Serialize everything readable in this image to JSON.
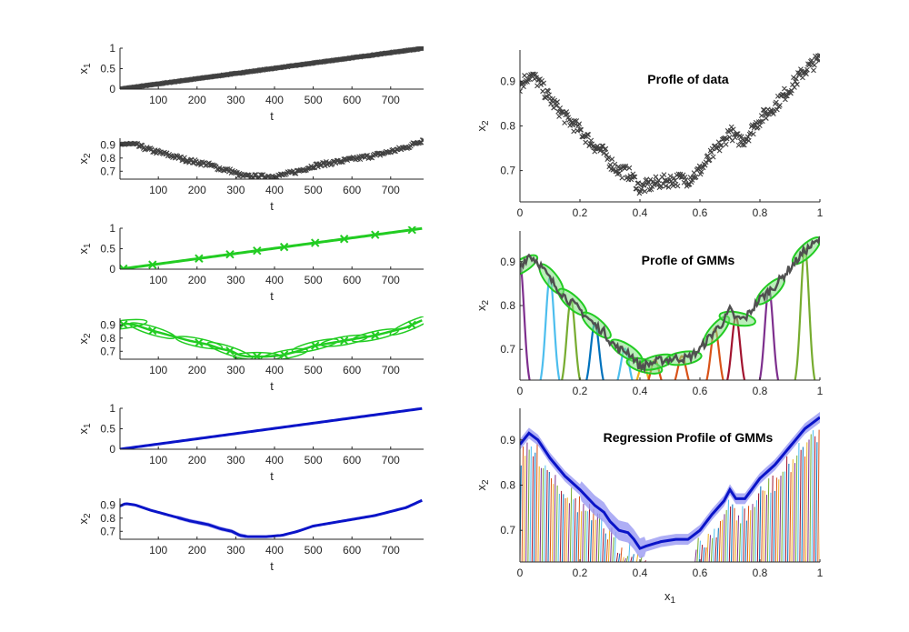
{
  "figure": {
    "background": "#ffffff"
  },
  "chart_data": [
    {
      "id": "p1",
      "type": "scatter",
      "title": "",
      "xlabel": "t",
      "ylabel": "x1",
      "xlim": [
        1,
        785
      ],
      "ylim": [
        0,
        1
      ],
      "xticks": [
        100,
        200,
        300,
        400,
        500,
        600,
        700
      ],
      "yticks": [
        0,
        0.5,
        1
      ],
      "series": [
        {
          "kind": "data_scatter",
          "color": "#404040",
          "curve": "x1",
          "marker": "x"
        }
      ]
    },
    {
      "id": "p2",
      "type": "scatter",
      "title": "",
      "xlabel": "t",
      "ylabel": "x2",
      "xlim": [
        1,
        785
      ],
      "ylim": [
        0.64,
        0.95
      ],
      "xticks": [
        100,
        200,
        300,
        400,
        500,
        600,
        700
      ],
      "yticks": [
        0.7,
        0.8,
        0.9
      ],
      "series": [
        {
          "kind": "data_scatter",
          "color": "#404040",
          "curve": "x2",
          "marker": "x"
        }
      ]
    },
    {
      "id": "p3",
      "type": "line",
      "title": "",
      "xlabel": "t",
      "ylabel": "x1",
      "xlim": [
        1,
        785
      ],
      "ylim": [
        0,
        1
      ],
      "xticks": [
        100,
        200,
        300,
        400,
        500,
        600,
        700
      ],
      "yticks": [
        0,
        0.5,
        1
      ],
      "series": [
        {
          "kind": "gmr_line",
          "color": "#22cc22",
          "curve": "x1"
        }
      ],
      "centers_t": [
        10,
        85,
        205,
        285,
        355,
        425,
        505,
        580,
        660,
        755
      ]
    },
    {
      "id": "p4",
      "type": "line",
      "title": "",
      "xlabel": "t",
      "ylabel": "x2",
      "xlim": [
        1,
        785
      ],
      "ylim": [
        0.64,
        0.95
      ],
      "xticks": [
        100,
        200,
        300,
        400,
        500,
        600,
        700
      ],
      "yticks": [
        0.7,
        0.8,
        0.9
      ],
      "series": [
        {
          "kind": "gmm_ellipses",
          "color": "#22cc22",
          "curve": "x2"
        }
      ],
      "centers_t": [
        10,
        85,
        205,
        285,
        355,
        425,
        505,
        580,
        660,
        755
      ]
    },
    {
      "id": "p5",
      "type": "line",
      "title": "",
      "xlabel": "t",
      "ylabel": "x1",
      "xlim": [
        1,
        785
      ],
      "ylim": [
        0,
        1
      ],
      "xticks": [
        100,
        200,
        300,
        400,
        500,
        600,
        700
      ],
      "yticks": [
        0,
        0.5,
        1
      ],
      "series": [
        {
          "kind": "regression_line",
          "color": "#0a14c8",
          "curve": "x1"
        }
      ]
    },
    {
      "id": "p6",
      "type": "line",
      "title": "",
      "xlabel": "t",
      "ylabel": "x2",
      "xlim": [
        1,
        785
      ],
      "ylim": [
        0.64,
        0.95
      ],
      "xticks": [
        100,
        200,
        300,
        400,
        500,
        600,
        700
      ],
      "yticks": [
        0.7,
        0.8,
        0.9
      ],
      "series": [
        {
          "kind": "regression_band",
          "color": "#0a14c8",
          "band_color": "#9a9af2",
          "curve": "x2"
        }
      ]
    },
    {
      "id": "p7",
      "type": "scatter",
      "title": "Profle of data",
      "xlabel": "",
      "ylabel": "x2",
      "xlim": [
        0,
        1
      ],
      "ylim": [
        0.63,
        0.97
      ],
      "xticks": [
        0,
        0.2,
        0.4,
        0.6,
        0.8,
        1
      ],
      "yticks": [
        0.7,
        0.8,
        0.9
      ],
      "series": [
        {
          "kind": "data_scatter",
          "color": "#404040",
          "curve": "profile",
          "marker": "x"
        }
      ]
    },
    {
      "id": "p8",
      "type": "line",
      "title": "Profle of GMMs",
      "xlabel": "",
      "ylabel": "x2",
      "xlim": [
        0,
        1
      ],
      "ylim": [
        0.63,
        0.97
      ],
      "xticks": [
        0,
        0.2,
        0.4,
        0.6,
        0.8,
        1
      ],
      "yticks": [
        0.7,
        0.8,
        0.9
      ],
      "series": [
        {
          "kind": "gmm_profile",
          "color": "#22cc22",
          "curve": "profile"
        }
      ],
      "gauss_centers": [
        0.0,
        0.1,
        0.17,
        0.25,
        0.35,
        0.41,
        0.45,
        0.54,
        0.65,
        0.72,
        0.83,
        0.95
      ],
      "gauss_colors": [
        "#7e2f8e",
        "#4dbeee",
        "#77ac30",
        "#0072bd",
        "#4dbeee",
        "#edb120",
        "#d95319",
        "#d95319",
        "#d95319",
        "#a2142f",
        "#7e2f8e",
        "#77ac30"
      ]
    },
    {
      "id": "p9",
      "type": "line",
      "title": "Regression Profile of GMMs",
      "xlabel": "x1",
      "ylabel": "x2",
      "xlim": [
        0,
        1
      ],
      "ylim": [
        0.63,
        0.97
      ],
      "xticks": [
        0,
        0.2,
        0.4,
        0.6,
        0.8,
        1
      ],
      "yticks": [
        0.7,
        0.8,
        0.9
      ],
      "series": [
        {
          "kind": "regression_spikes",
          "color": "#0a14c8",
          "band_color": "#9a9af2",
          "curve": "profile"
        }
      ],
      "spike_colors": [
        "#0072bd",
        "#d95319",
        "#edb120",
        "#7e2f8e",
        "#77ac30",
        "#4dbeee",
        "#a2142f"
      ]
    }
  ]
}
